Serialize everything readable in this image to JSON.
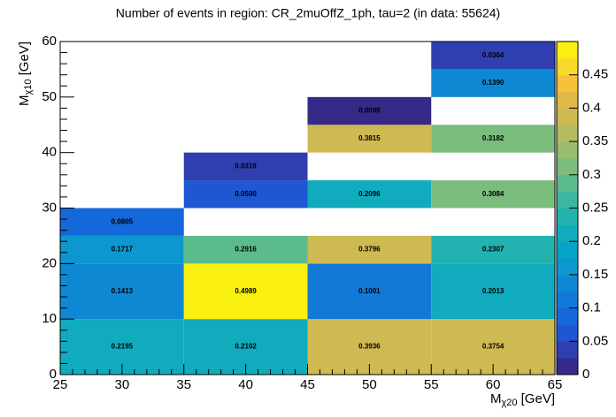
{
  "chart_data": {
    "type": "heatmap",
    "title": "Number of events in region: CR_2muOffZ_1ph, tau=2 (in data: 55624)",
    "xlabel": "M",
    "xlabel_sub": "χ20",
    "xlabel_unit": " [GeV]",
    "ylabel": "M",
    "ylabel_sub": "χ10",
    "ylabel_unit": " [GeV]",
    "xlim": [
      25,
      65
    ],
    "xticks": [
      25,
      30,
      35,
      40,
      45,
      50,
      55,
      60,
      65
    ],
    "ylim": [
      0,
      60
    ],
    "yticks": [
      0,
      10,
      20,
      30,
      40,
      50,
      60
    ],
    "zlim": [
      0,
      0.5
    ],
    "zticks": [
      0,
      0.05,
      0.1,
      0.15,
      0.2,
      0.25,
      0.3,
      0.35,
      0.4,
      0.45
    ],
    "colormap": [
      "#352a87",
      "#2f3fb0",
      "#1f56d2",
      "#1468d9",
      "#1279d8",
      "#0f88d3",
      "#0d97cf",
      "#07a3c8",
      "#10abbd",
      "#22b2af",
      "#3cb79f",
      "#5bbb8d",
      "#7bbd7c",
      "#98bd6d",
      "#b5bb60",
      "#ceb952",
      "#e2b948",
      "#f5c23a",
      "#f8d82a",
      "#f9f00f"
    ],
    "xbins": [
      [
        25,
        35
      ],
      [
        25,
        35
      ],
      [
        25,
        35
      ],
      [
        25,
        35
      ],
      [
        35,
        45
      ],
      [
        35,
        45
      ],
      [
        35,
        45
      ],
      [
        35,
        45
      ],
      [
        35,
        45
      ],
      [
        45,
        55
      ],
      [
        45,
        55
      ],
      [
        45,
        55
      ],
      [
        45,
        55
      ],
      [
        45,
        55
      ],
      [
        45,
        55
      ],
      [
        55,
        65
      ],
      [
        55,
        65
      ],
      [
        55,
        65
      ],
      [
        55,
        65
      ],
      [
        55,
        65
      ],
      [
        55,
        65
      ],
      [
        55,
        65
      ]
    ],
    "ybins": [
      [
        0,
        10
      ],
      [
        10,
        20
      ],
      [
        20,
        25
      ],
      [
        25,
        30
      ],
      [
        0,
        10
      ],
      [
        10,
        20
      ],
      [
        20,
        25
      ],
      [
        30,
        35
      ],
      [
        35,
        40
      ],
      [
        0,
        10
      ],
      [
        10,
        20
      ],
      [
        20,
        25
      ],
      [
        30,
        35
      ],
      [
        40,
        45
      ],
      [
        45,
        50
      ],
      [
        0,
        10
      ],
      [
        10,
        20
      ],
      [
        20,
        25
      ],
      [
        30,
        35
      ],
      [
        40,
        45
      ],
      [
        50,
        55
      ],
      [
        55,
        60
      ]
    ],
    "values": [
      0.2195,
      0.1413,
      0.1717,
      0.0805,
      0.2102,
      0.4989,
      0.2916,
      0.05,
      0.0319,
      0.3936,
      0.1001,
      0.3796,
      0.2096,
      0.3815,
      0.0098,
      0.3754,
      0.2013,
      0.2307,
      0.3084,
      0.3182,
      0.139,
      0.0304
    ],
    "value_labels": [
      "0.2195",
      "0.1413",
      "0.1717",
      "0.0805",
      "0.2102",
      "0.4989",
      "0.2916",
      "0.0500",
      "0.0319",
      "0.3936",
      "0.1001",
      "0.3796",
      "0.2096",
      "0.3815",
      "0.0098",
      "0.3754",
      "0.2013",
      "0.2307",
      "0.3084",
      "0.3182",
      "0.1390",
      "0.0304"
    ]
  }
}
